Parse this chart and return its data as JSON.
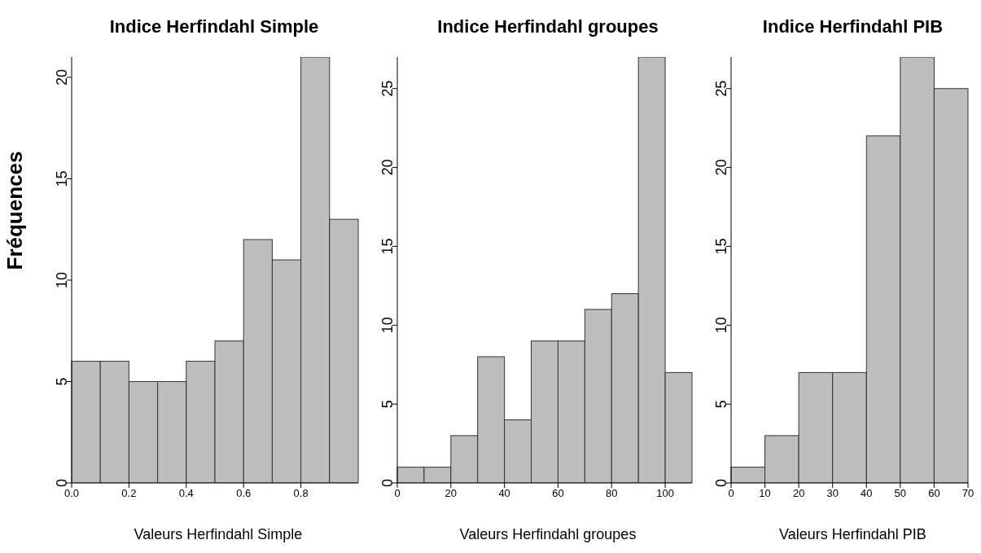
{
  "chart_data": [
    {
      "type": "histogram",
      "title": "Indice Herfindahl Simple",
      "xlabel": "Valeurs Herfindahl Simple",
      "ylabel": "Fréquences",
      "bins": [
        0,
        0.1,
        0.2,
        0.3,
        0.4,
        0.5,
        0.6,
        0.7,
        0.8,
        0.9,
        1.0
      ],
      "values": [
        6,
        6,
        5,
        5,
        6,
        7,
        12,
        11,
        21,
        13
      ],
      "color": "#bebebe",
      "xlim": [
        0,
        1
      ],
      "xticks": [
        {
          "value": 0,
          "label": "0.0"
        },
        0.2,
        0.4,
        0.6,
        0.8
      ],
      "ylim": [
        0,
        21
      ],
      "yticks": [
        0,
        5,
        10,
        15,
        20
      ]
    },
    {
      "type": "histogram",
      "title": "Indice Herfindahl groupes",
      "xlabel": "Valeurs Herfindahl groupes",
      "bins": [
        0,
        10,
        20,
        30,
        40,
        50,
        60,
        70,
        80,
        90,
        100,
        110
      ],
      "values": [
        1,
        1,
        3,
        8,
        4,
        9,
        9,
        11,
        12,
        27,
        7
      ],
      "color": "#bebebe",
      "xlim": [
        0,
        110
      ],
      "xticks": [
        0,
        20,
        40,
        60,
        80,
        100
      ],
      "ylim": [
        0,
        27
      ],
      "yticks": [
        0,
        5,
        10,
        15,
        20,
        25
      ]
    },
    {
      "type": "histogram",
      "title": "Indice Herfindahl PIB",
      "xlabel": "Valeurs Herfindahl PIB",
      "bins": [
        0,
        10,
        20,
        30,
        40,
        50,
        60,
        70
      ],
      "values": [
        1,
        3,
        7,
        7,
        22,
        27,
        25
      ],
      "color": "#bebebe",
      "xlim": [
        0,
        70
      ],
      "xticks": [
        0,
        10,
        20,
        30,
        40,
        50,
        60,
        70
      ],
      "ylim": [
        0,
        27
      ],
      "yticks": [
        0,
        5,
        10,
        15,
        20,
        25
      ]
    }
  ]
}
